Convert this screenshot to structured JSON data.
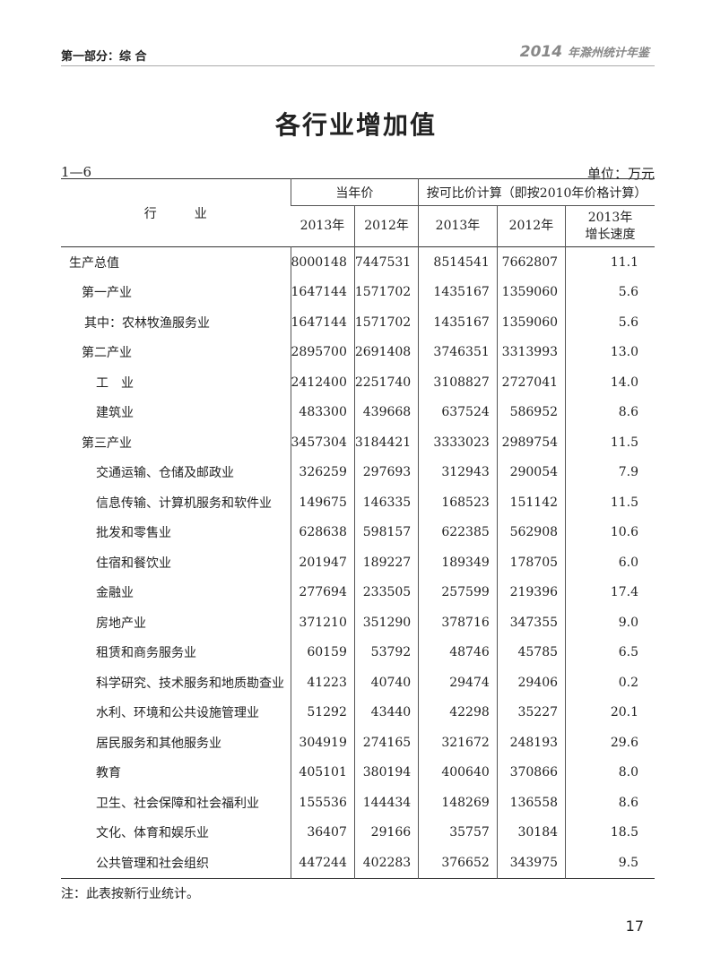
{
  "header": {
    "section": "第一部分：综 合",
    "book_year": "2014",
    "book_name": "年滁州统计年鉴"
  },
  "title": "各行业增加值",
  "table_no": "1—6",
  "unit": "单位：万元",
  "table": {
    "industry_header": "行　　　业",
    "group_current": "当年价",
    "group_comparable": "按可比价计算（即按2010年价格计算）",
    "sub_headers": [
      "2013年",
      "2012年",
      "2013年",
      "2012年",
      "2013年\n增长速度"
    ],
    "rows": [
      {
        "name": "生产总值",
        "level": 0,
        "v": [
          "8000148",
          "7447531",
          "8514541",
          "7662807",
          "11.1"
        ]
      },
      {
        "name": "第一产业",
        "level": 1,
        "v": [
          "1647144",
          "1571702",
          "1435167",
          "1359060",
          "5.6"
        ]
      },
      {
        "name": "其中：农林牧渔服务业",
        "level": 2,
        "v": [
          "1647144",
          "1571702",
          "1435167",
          "1359060",
          "5.6"
        ]
      },
      {
        "name": "第二产业",
        "level": 1,
        "v": [
          "2895700",
          "2691408",
          "3746351",
          "3313993",
          "13.0"
        ]
      },
      {
        "name": "工　业",
        "level": 3,
        "v": [
          "2412400",
          "2251740",
          "3108827",
          "2727041",
          "14.0"
        ]
      },
      {
        "name": "建筑业",
        "level": 3,
        "v": [
          "483300",
          "439668",
          "637524",
          "586952",
          "8.6"
        ]
      },
      {
        "name": "第三产业",
        "level": 1,
        "v": [
          "3457304",
          "3184421",
          "3333023",
          "2989754",
          "11.5"
        ]
      },
      {
        "name": "交通运输、仓储及邮政业",
        "level": 3,
        "v": [
          "326259",
          "297693",
          "312943",
          "290054",
          "7.9"
        ]
      },
      {
        "name": "信息传输、计算机服务和软件业",
        "level": 3,
        "v": [
          "149675",
          "146335",
          "168523",
          "151142",
          "11.5"
        ]
      },
      {
        "name": "批发和零售业",
        "level": 3,
        "v": [
          "628638",
          "598157",
          "622385",
          "562908",
          "10.6"
        ]
      },
      {
        "name": "住宿和餐饮业",
        "level": 3,
        "v": [
          "201947",
          "189227",
          "189349",
          "178705",
          "6.0"
        ]
      },
      {
        "name": "金融业",
        "level": 3,
        "v": [
          "277694",
          "233505",
          "257599",
          "219396",
          "17.4"
        ]
      },
      {
        "name": "房地产业",
        "level": 3,
        "v": [
          "371210",
          "351290",
          "378716",
          "347355",
          "9.0"
        ]
      },
      {
        "name": "租赁和商务服务业",
        "level": 3,
        "v": [
          "60159",
          "53792",
          "48746",
          "45785",
          "6.5"
        ]
      },
      {
        "name": "科学研究、技术服务和地质勘查业",
        "level": 3,
        "v": [
          "41223",
          "40740",
          "29474",
          "29406",
          "0.2"
        ]
      },
      {
        "name": "水利、环境和公共设施管理业",
        "level": 3,
        "v": [
          "51292",
          "43440",
          "42298",
          "35227",
          "20.1"
        ]
      },
      {
        "name": "居民服务和其他服务业",
        "level": 3,
        "v": [
          "304919",
          "274165",
          "321672",
          "248193",
          "29.6"
        ]
      },
      {
        "name": "教育",
        "level": 3,
        "v": [
          "405101",
          "380194",
          "400640",
          "370866",
          "8.0"
        ]
      },
      {
        "name": "卫生、社会保障和社会福利业",
        "level": 3,
        "v": [
          "155536",
          "144434",
          "148269",
          "136558",
          "8.6"
        ]
      },
      {
        "name": "文化、体育和娱乐业",
        "level": 3,
        "v": [
          "36407",
          "29166",
          "35757",
          "30184",
          "18.5"
        ]
      },
      {
        "name": "公共管理和社会组织",
        "level": 3,
        "v": [
          "447244",
          "402283",
          "376652",
          "343975",
          "9.5"
        ]
      }
    ]
  },
  "note": "注：此表按新行业统计。",
  "page_number": "17"
}
